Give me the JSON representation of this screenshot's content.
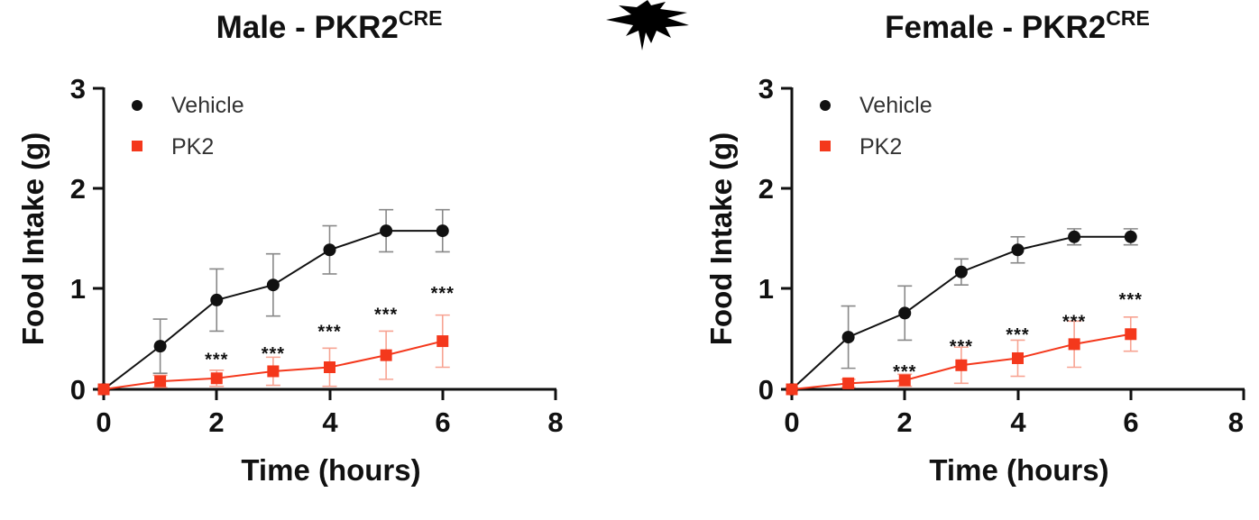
{
  "chart_data": [
    {
      "type": "line",
      "title": "Male - PKR2",
      "title_sup": "CRE",
      "xlabel": "Time (hours)",
      "ylabel": "Food Intake (g)",
      "xlim": [
        0,
        8
      ],
      "ylim": [
        0,
        3
      ],
      "xticks": [
        "0",
        "2",
        "4",
        "6",
        "8"
      ],
      "yticks": [
        "0",
        "1",
        "2",
        "3"
      ],
      "grid": false,
      "legend_position": "top-left",
      "x": [
        0,
        1,
        2,
        3,
        4,
        5,
        6
      ],
      "series": [
        {
          "name": "Vehicle",
          "marker": "circle",
          "color": "#111111",
          "values": [
            0,
            0.43,
            0.89,
            1.04,
            1.39,
            1.58,
            1.58
          ],
          "errors": [
            0,
            0.27,
            0.31,
            0.31,
            0.24,
            0.21,
            0.21
          ]
        },
        {
          "name": "PK2",
          "marker": "square",
          "color": "#f4381c",
          "values": [
            0,
            0.08,
            0.11,
            0.18,
            0.22,
            0.34,
            0.48
          ],
          "errors": [
            0,
            0.06,
            0.08,
            0.14,
            0.19,
            0.24,
            0.26
          ]
        }
      ],
      "annotations": [
        {
          "x": 2,
          "y": 0.3,
          "text": "***"
        },
        {
          "x": 3,
          "y": 0.36,
          "text": "***"
        },
        {
          "x": 4,
          "y": 0.58,
          "text": "***"
        },
        {
          "x": 5,
          "y": 0.75,
          "text": "***"
        },
        {
          "x": 6,
          "y": 0.96,
          "text": "***"
        }
      ]
    },
    {
      "type": "line",
      "title": "Female - PKR2",
      "title_sup": "CRE",
      "xlabel": "Time (hours)",
      "ylabel": "Food Intake (g)",
      "xlim": [
        0,
        8
      ],
      "ylim": [
        0,
        3
      ],
      "xticks": [
        "0",
        "2",
        "4",
        "6",
        "8"
      ],
      "yticks": [
        "0",
        "1",
        "2",
        "3"
      ],
      "grid": false,
      "legend_position": "top-left",
      "x": [
        0,
        1,
        2,
        3,
        4,
        5,
        6
      ],
      "series": [
        {
          "name": "Vehicle",
          "marker": "circle",
          "color": "#111111",
          "values": [
            0,
            0.52,
            0.76,
            1.17,
            1.39,
            1.52,
            1.52
          ],
          "errors": [
            0,
            0.31,
            0.27,
            0.13,
            0.13,
            0.08,
            0.08
          ]
        },
        {
          "name": "PK2",
          "marker": "square",
          "color": "#f4381c",
          "values": [
            0,
            0.06,
            0.09,
            0.24,
            0.31,
            0.45,
            0.55
          ],
          "errors": [
            0,
            0.04,
            0.06,
            0.18,
            0.18,
            0.23,
            0.17
          ]
        }
      ],
      "annotations": [
        {
          "x": 2,
          "y": 0.18,
          "text": "***"
        },
        {
          "x": 3,
          "y": 0.43,
          "text": "***"
        },
        {
          "x": 4,
          "y": 0.55,
          "text": "***"
        },
        {
          "x": 5,
          "y": 0.68,
          "text": "***"
        },
        {
          "x": 6,
          "y": 0.9,
          "text": "***"
        }
      ]
    }
  ]
}
